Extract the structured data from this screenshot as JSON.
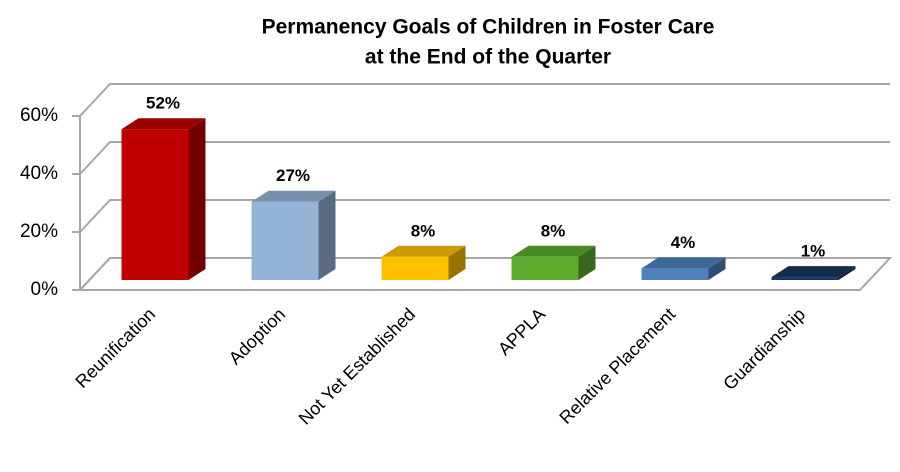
{
  "chart_data": {
    "type": "bar3d",
    "title": "Permanency Goals of Children in Foster Care",
    "subtitle": "at the End of the Quarter",
    "categories": [
      "Reunification",
      "Adoption",
      "Not Yet Established",
      "APPLA",
      "Relative Placement",
      "Guardianship"
    ],
    "values": [
      52,
      27,
      8,
      8,
      4,
      1
    ],
    "value_labels": [
      "52%",
      "27%",
      "8%",
      "8%",
      "4%",
      "1%"
    ],
    "colors": [
      "#c00000",
      "#95b3d7",
      "#ffc000",
      "#5aab2c",
      "#4f81bd",
      "#17375e"
    ],
    "ylim": [
      0,
      60
    ],
    "yticks": [
      {
        "value": 0,
        "label": "0%"
      },
      {
        "value": 20,
        "label": "20%"
      },
      {
        "value": 40,
        "label": "40%"
      },
      {
        "value": 60,
        "label": "60%"
      }
    ],
    "grid": true
  }
}
